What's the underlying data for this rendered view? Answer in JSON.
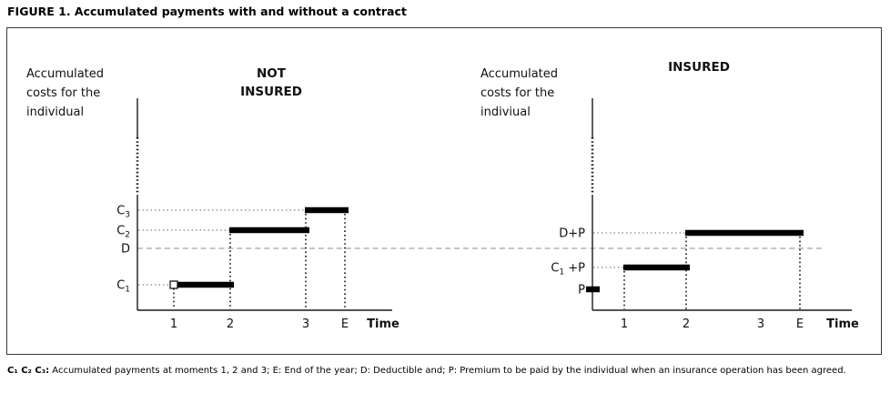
{
  "figure_title": "FIGURE 1. Accumulated payments with and without a contract",
  "footnote": {
    "lead": "C₁ C₂ C₃:",
    "rest": " Accumulated payments at moments 1, 2 and 3; E: End of the year; D: Deductible and; P: Premium to be paid by the individual when an insurance operation has been agreed."
  },
  "colors": {
    "bar": "#000000",
    "axis": "#1a1a1a",
    "grid_dotted": "#9a9a9a",
    "drop_dotted": "#111111",
    "deductible_dashed": "#c6c6c6"
  },
  "chart_data": [
    {
      "type": "step",
      "title_lines": [
        "NOT",
        "INSURED"
      ],
      "y_axis_label_lines": [
        "Accumulated",
        "costs for the",
        "individual"
      ],
      "x_axis_title": "Time",
      "x_ticks": [
        "1",
        "2",
        "3",
        "E"
      ],
      "y_labels": [
        {
          "level": "C3",
          "parts": [
            {
              "t": "C"
            },
            {
              "sub": "3"
            }
          ],
          "grid_to": "3"
        },
        {
          "level": "C2",
          "parts": [
            {
              "t": "C"
            },
            {
              "sub": "2"
            }
          ],
          "grid_to": "2"
        },
        {
          "level": "D",
          "parts": [
            {
              "t": "D"
            }
          ]
        },
        {
          "level": "C1",
          "parts": [
            {
              "t": "C"
            },
            {
              "sub": "1"
            }
          ],
          "grid_to": "1"
        }
      ],
      "segments": [
        {
          "from": "1",
          "to": "2",
          "level": "C1",
          "marker_start": true
        },
        {
          "from": "2",
          "to": "3",
          "level": "C2"
        },
        {
          "from": "3",
          "to": "E",
          "level": "C3"
        }
      ],
      "dashed_reference_level": "D"
    },
    {
      "type": "step",
      "title_lines": [
        "INSURED"
      ],
      "y_axis_label_lines": [
        "Accumulated",
        "costs for the",
        "indiviual"
      ],
      "x_axis_title": "Time",
      "x_ticks": [
        "1",
        "2",
        "3",
        "E"
      ],
      "y_labels": [
        {
          "level": "DP",
          "parts": [
            {
              "t": "D+P"
            }
          ],
          "grid_to": "2"
        },
        {
          "level": "C1P",
          "parts": [
            {
              "t": "C"
            },
            {
              "sub": "1"
            },
            {
              "t": " +P"
            }
          ],
          "grid_to": "1"
        },
        {
          "level": "P",
          "parts": [
            {
              "t": "P"
            }
          ]
        }
      ],
      "segments": [
        {
          "from": "origin",
          "to": "origin_end",
          "level": "P",
          "drops": false
        },
        {
          "from": "1",
          "to": "2",
          "level": "C1P"
        },
        {
          "from": "2",
          "to": "E",
          "level": "DP"
        }
      ],
      "dashed_reference_level": "D"
    }
  ]
}
